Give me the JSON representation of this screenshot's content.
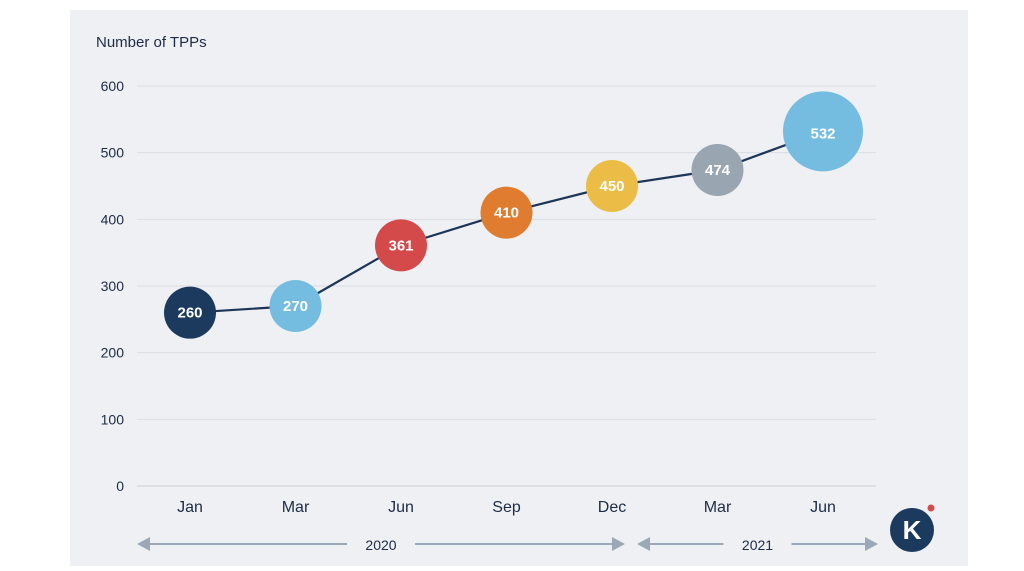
{
  "chart_data": {
    "type": "line",
    "ylabel": "Number of TPPs",
    "categories": [
      "Jan",
      "Mar",
      "Jun",
      "Sep",
      "Dec",
      "Mar",
      "Jun"
    ],
    "values": [
      260,
      270,
      361,
      410,
      450,
      474,
      532
    ],
    "data_labels": [
      "260",
      "270",
      "361",
      "410",
      "450",
      "474",
      "532"
    ],
    "colors": [
      "#1b3a5e",
      "#74bde0",
      "#d44a4a",
      "#e07c2f",
      "#ebbc46",
      "#9aa5b2",
      "#74bde0"
    ],
    "ylim": [
      0,
      600
    ],
    "yticks": [
      "0",
      "100",
      "200",
      "300",
      "400",
      "500",
      "600"
    ],
    "grid": true,
    "year_groups": [
      {
        "label": "2020",
        "span": [
          0,
          4
        ]
      },
      {
        "label": "2021",
        "span": [
          5,
          6
        ]
      }
    ]
  },
  "logo": {
    "letter": "K",
    "name": "logo"
  }
}
